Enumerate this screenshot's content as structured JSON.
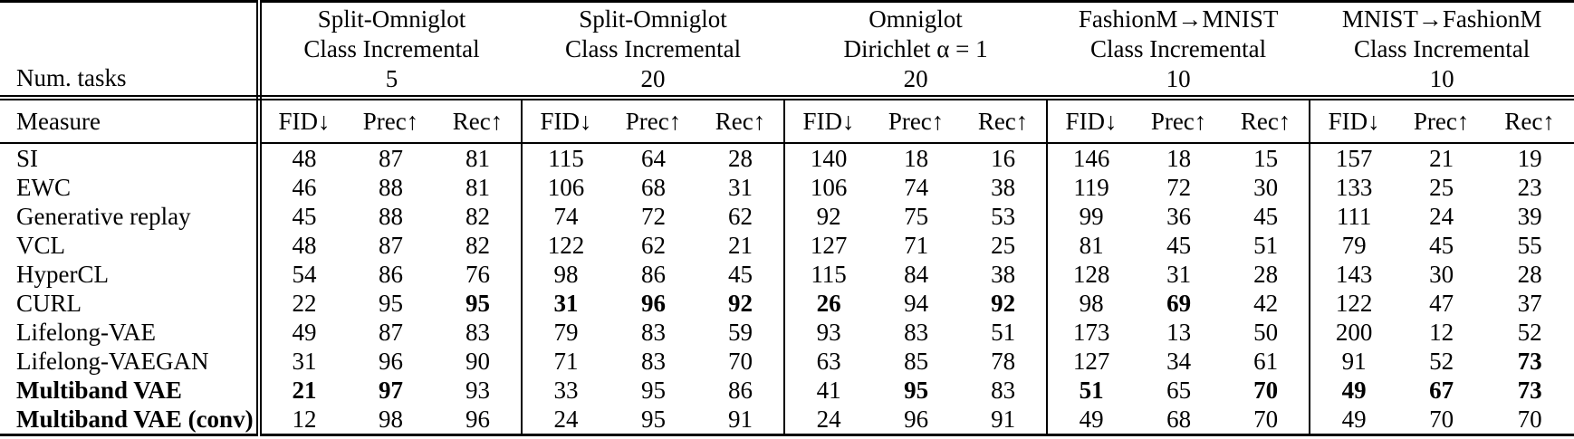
{
  "table": {
    "corner_top": "Num. tasks",
    "corner_bottom": "Measure",
    "groups": [
      {
        "line1": "Split-Omniglot",
        "line2": "Class Incremental",
        "tasks": "5"
      },
      {
        "line1": "Split-Omniglot",
        "line2": "Class Incremental",
        "tasks": "20"
      },
      {
        "line1": "Omniglot",
        "line2": "Dirichlet α = 1",
        "tasks": "20"
      },
      {
        "line1": "FashionM→MNIST",
        "line2": "Class Incremental",
        "tasks": "10"
      },
      {
        "line1": "MNIST→FashionM",
        "line2": "Class Incremental",
        "tasks": "10"
      }
    ],
    "measures": [
      "FID↓",
      "Prec↑",
      "Rec↑"
    ],
    "rows": [
      {
        "label": "SI",
        "label_bold": false,
        "values": [
          48,
          87,
          81,
          115,
          64,
          28,
          140,
          18,
          16,
          146,
          18,
          15,
          157,
          21,
          19
        ],
        "bold": []
      },
      {
        "label": "EWC",
        "label_bold": false,
        "values": [
          46,
          88,
          81,
          106,
          68,
          31,
          106,
          74,
          38,
          119,
          72,
          30,
          133,
          25,
          23
        ],
        "bold": []
      },
      {
        "label": "Generative replay",
        "label_bold": false,
        "values": [
          45,
          88,
          82,
          74,
          72,
          62,
          92,
          75,
          53,
          99,
          36,
          45,
          111,
          24,
          39
        ],
        "bold": []
      },
      {
        "label": "VCL",
        "label_bold": false,
        "values": [
          48,
          87,
          82,
          122,
          62,
          21,
          127,
          71,
          25,
          81,
          45,
          51,
          79,
          45,
          55
        ],
        "bold": []
      },
      {
        "label": "HyperCL",
        "label_bold": false,
        "values": [
          54,
          86,
          76,
          98,
          86,
          45,
          115,
          84,
          38,
          128,
          31,
          28,
          143,
          30,
          28
        ],
        "bold": []
      },
      {
        "label": "CURL",
        "label_bold": false,
        "values": [
          22,
          95,
          95,
          31,
          96,
          92,
          26,
          94,
          92,
          98,
          69,
          42,
          122,
          47,
          37
        ],
        "bold": [
          2,
          3,
          4,
          5,
          6,
          8,
          10
        ]
      },
      {
        "label": "Lifelong-VAE",
        "label_bold": false,
        "values": [
          49,
          87,
          83,
          79,
          83,
          59,
          93,
          83,
          51,
          173,
          13,
          50,
          200,
          12,
          52
        ],
        "bold": []
      },
      {
        "label": "Lifelong-VAEGAN",
        "label_bold": false,
        "values": [
          31,
          96,
          90,
          71,
          83,
          70,
          63,
          85,
          78,
          127,
          34,
          61,
          91,
          52,
          73
        ],
        "bold": [
          14
        ]
      },
      {
        "label": "Multiband VAE",
        "label_bold": true,
        "values": [
          21,
          97,
          93,
          33,
          95,
          86,
          41,
          95,
          83,
          51,
          65,
          70,
          49,
          67,
          73
        ],
        "bold": [
          0,
          1,
          7,
          9,
          11,
          12,
          13,
          14
        ]
      },
      {
        "label": "Multiband VAE (conv)",
        "label_bold": true,
        "values": [
          12,
          98,
          96,
          24,
          95,
          91,
          24,
          96,
          91,
          49,
          68,
          70,
          49,
          70,
          70
        ],
        "bold": []
      }
    ]
  }
}
